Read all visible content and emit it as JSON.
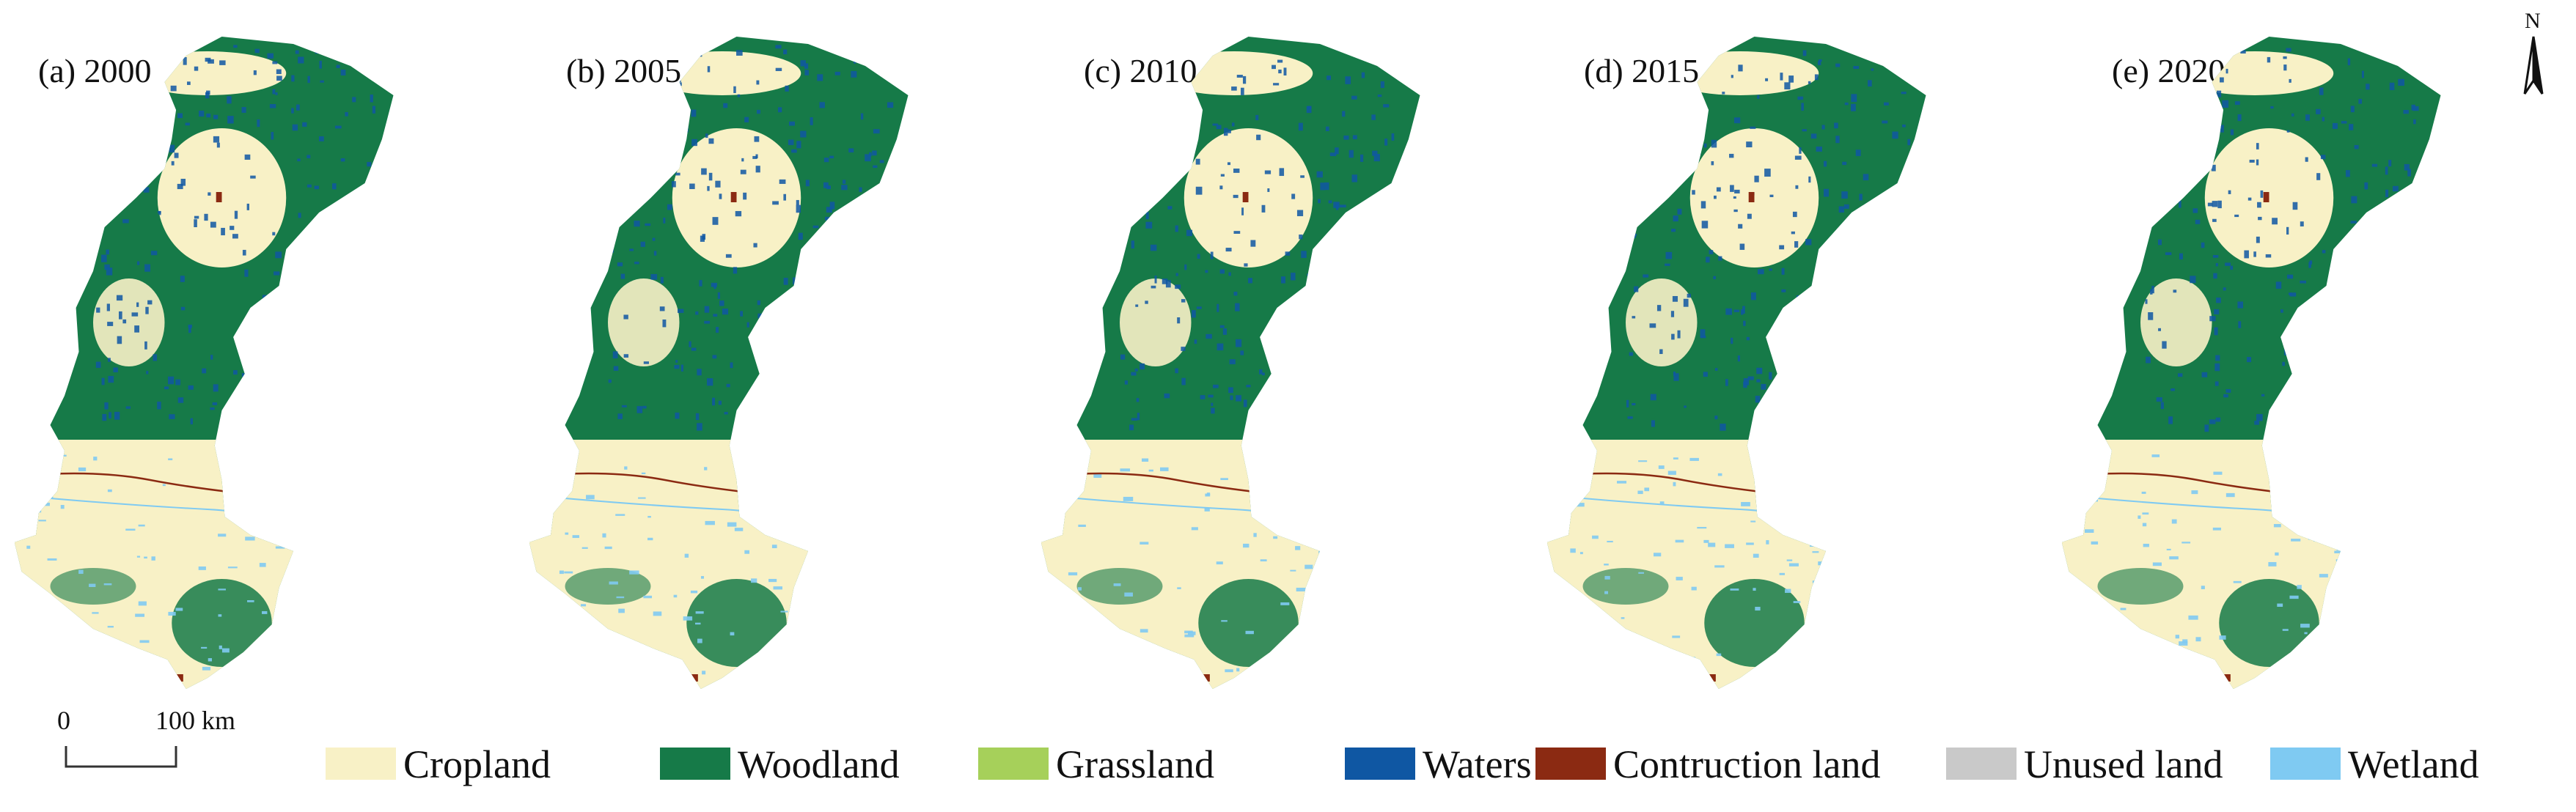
{
  "panels": [
    {
      "label": "(a) 2000"
    },
    {
      "label": "(b) 2005"
    },
    {
      "label": "(c) 2010"
    },
    {
      "label": "(d) 2015"
    },
    {
      "label": "(e) 2020"
    }
  ],
  "north_arrow": {
    "letter": "N"
  },
  "scale_bar": {
    "start_label": "0",
    "end_label": "100 km"
  },
  "legend": [
    {
      "label": "Cropland",
      "color": "#f8f1c6"
    },
    {
      "label": "Woodland",
      "color": "#167a48"
    },
    {
      "label": "Grassland",
      "color": "#a6d05a"
    },
    {
      "label": "Waters",
      "color": "#0f57a3"
    },
    {
      "label": "Contruction land",
      "color": "#8b2a12"
    },
    {
      "label": "Unused land",
      "color": "#c9c9c9"
    },
    {
      "label": "Wetland",
      "color": "#7fcaf2"
    }
  ]
}
